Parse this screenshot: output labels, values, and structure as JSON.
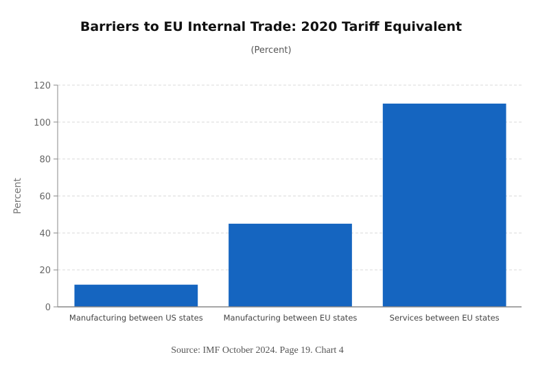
{
  "chart_data": {
    "type": "bar",
    "title": "Barriers to EU Internal Trade: 2020 Tariff Equivalent",
    "subtitle": "(Percent)",
    "categories": [
      "Manufacturing between US states",
      "Manufacturing between EU states",
      "Services between EU states"
    ],
    "values": [
      12,
      45,
      110
    ],
    "xlabel": "",
    "ylabel": "Percent",
    "ylim": [
      0,
      120
    ],
    "yticks": [
      0,
      20,
      40,
      60,
      80,
      100,
      120
    ],
    "grid": true,
    "bar_color": "#1565C0"
  },
  "source": "Source: IMF October 2024. Page 19. Chart 4"
}
